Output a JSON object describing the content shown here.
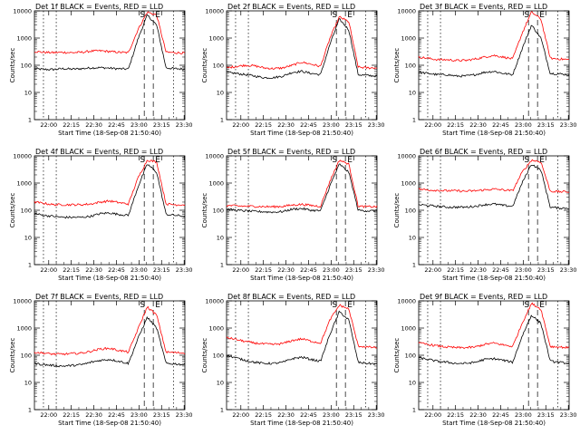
{
  "chart_data": [
    {
      "type": "line",
      "title": "Det 1f BLACK = Events, RED = LLD",
      "xlabel": "Start Time (18-Sep-08 21:50:40)",
      "ylabel": "Counts/sec",
      "yscale": "log",
      "ylim": [
        1,
        10000
      ],
      "xlim": [
        0,
        6000
      ],
      "x_ticks": [
        "22:00",
        "22:15",
        "22:30",
        "22:45",
        "23:00",
        "23:15",
        "23:30"
      ],
      "y_ticks": [
        "1",
        "10",
        "100",
        "1000",
        "10000"
      ],
      "markers": [
        "S",
        "E"
      ],
      "series": [
        {
          "name": "Events",
          "color": "#000000",
          "values": [
            75,
            70,
            70,
            75,
            72,
            75,
            80,
            82,
            78,
            74,
            72,
            900,
            7000,
            3000,
            80,
            75,
            72
          ]
        },
        {
          "name": "LLD",
          "color": "#ff0000",
          "values": [
            320,
            300,
            290,
            300,
            290,
            300,
            330,
            340,
            320,
            300,
            290,
            2000,
            9000,
            7000,
            300,
            290,
            280
          ]
        }
      ]
    },
    {
      "type": "line",
      "title": "Det 2f BLACK = Events, RED = LLD",
      "xlabel": "Start Time (18-Sep-08 21:50:40)",
      "ylabel": "Counts/sec",
      "yscale": "log",
      "ylim": [
        1,
        10000
      ],
      "xlim": [
        0,
        6000
      ],
      "x_ticks": [
        "22:00",
        "22:15",
        "22:30",
        "22:45",
        "23:00",
        "23:15",
        "23:30"
      ],
      "y_ticks": [
        "1",
        "10",
        "100",
        "1000",
        "10000"
      ],
      "markers": [
        "S",
        "E"
      ],
      "series": [
        {
          "name": "Events",
          "color": "#000000",
          "values": [
            55,
            50,
            45,
            40,
            35,
            35,
            40,
            55,
            60,
            50,
            45,
            600,
            5000,
            2000,
            45,
            42,
            40
          ]
        },
        {
          "name": "LLD",
          "color": "#ff0000",
          "values": [
            80,
            90,
            100,
            95,
            80,
            75,
            80,
            100,
            130,
            110,
            90,
            1000,
            6000,
            4000,
            85,
            80,
            80
          ]
        }
      ]
    },
    {
      "type": "line",
      "title": "Det 3f BLACK = Events, RED = LLD",
      "xlabel": "Start Time (18-Sep-08 21:50:40)",
      "ylabel": "Counts/sec",
      "yscale": "log",
      "ylim": [
        1,
        10000
      ],
      "xlim": [
        0,
        6000
      ],
      "x_ticks": [
        "22:00",
        "22:15",
        "22:30",
        "22:45",
        "23:00",
        "23:15",
        "23:30"
      ],
      "y_ticks": [
        "1",
        "10",
        "100",
        "1000",
        "10000"
      ],
      "markers": [
        "S",
        "E"
      ],
      "series": [
        {
          "name": "Events",
          "color": "#000000",
          "values": [
            55,
            50,
            45,
            45,
            40,
            40,
            45,
            55,
            60,
            50,
            45,
            400,
            3000,
            1000,
            50,
            48,
            45
          ]
        },
        {
          "name": "LLD",
          "color": "#ff0000",
          "values": [
            200,
            180,
            160,
            160,
            150,
            150,
            170,
            200,
            230,
            200,
            170,
            1500,
            9000,
            5000,
            180,
            170,
            160
          ]
        }
      ]
    },
    {
      "type": "line",
      "title": "Det 4f BLACK = Events, RED = LLD",
      "xlabel": "Start Time (18-Sep-08 21:50:40)",
      "ylabel": "Counts/sec",
      "yscale": "log",
      "ylim": [
        1,
        10000
      ],
      "xlim": [
        0,
        6000
      ],
      "x_ticks": [
        "22:00",
        "22:15",
        "22:30",
        "22:45",
        "23:00",
        "23:15",
        "23:30"
      ],
      "y_ticks": [
        "1",
        "10",
        "100",
        "1000",
        "10000"
      ],
      "markers": [
        "S",
        "E"
      ],
      "series": [
        {
          "name": "Events",
          "color": "#000000",
          "values": [
            75,
            65,
            60,
            55,
            55,
            55,
            60,
            75,
            80,
            70,
            65,
            700,
            5000,
            2500,
            70,
            65,
            60
          ]
        },
        {
          "name": "LLD",
          "color": "#ff0000",
          "values": [
            200,
            180,
            160,
            160,
            160,
            160,
            170,
            200,
            220,
            190,
            170,
            1500,
            7000,
            6000,
            170,
            160,
            160
          ]
        }
      ]
    },
    {
      "type": "line",
      "title": "Det 5f BLACK = Events, RED = LLD",
      "xlabel": "Start Time (18-Sep-08 21:50:40)",
      "ylabel": "Counts/sec",
      "yscale": "log",
      "ylim": [
        1,
        10000
      ],
      "xlim": [
        0,
        6000
      ],
      "x_ticks": [
        "22:00",
        "22:15",
        "22:30",
        "22:45",
        "23:00",
        "23:15",
        "23:30"
      ],
      "y_ticks": [
        "1",
        "10",
        "100",
        "1000",
        "10000"
      ],
      "markers": [
        "S",
        "E"
      ],
      "series": [
        {
          "name": "Events",
          "color": "#000000",
          "values": [
            110,
            100,
            95,
            90,
            88,
            85,
            90,
            110,
            115,
            100,
            95,
            800,
            5000,
            2500,
            100,
            95,
            95
          ]
        },
        {
          "name": "LLD",
          "color": "#ff0000",
          "values": [
            150,
            145,
            140,
            140,
            135,
            135,
            140,
            155,
            165,
            150,
            140,
            1200,
            7000,
            5000,
            140,
            135,
            135
          ]
        }
      ]
    },
    {
      "type": "line",
      "title": "Det 6f BLACK = Events, RED = LLD",
      "xlabel": "Start Time (18-Sep-08 21:50:40)",
      "ylabel": "Counts/sec",
      "yscale": "log",
      "ylim": [
        1,
        10000
      ],
      "xlim": [
        0,
        6000
      ],
      "x_ticks": [
        "22:00",
        "22:15",
        "22:30",
        "22:45",
        "23:00",
        "23:15",
        "23:30"
      ],
      "y_ticks": [
        "1",
        "10",
        "100",
        "1000",
        "10000"
      ],
      "markers": [
        "S",
        "E"
      ],
      "series": [
        {
          "name": "Events",
          "color": "#000000",
          "values": [
            160,
            150,
            140,
            130,
            130,
            130,
            140,
            160,
            170,
            150,
            140,
            1000,
            5000,
            3000,
            130,
            120,
            120
          ]
        },
        {
          "name": "LLD",
          "color": "#ff0000",
          "values": [
            600,
            560,
            540,
            520,
            520,
            500,
            520,
            560,
            600,
            560,
            520,
            2500,
            7000,
            6000,
            500,
            480,
            480
          ]
        }
      ]
    },
    {
      "type": "line",
      "title": "Det 7f BLACK = Events, RED = LLD",
      "xlabel": "Start Time (18-Sep-08 21:50:40)",
      "ylabel": "Counts/sec",
      "yscale": "log",
      "ylim": [
        1,
        10000
      ],
      "xlim": [
        0,
        6000
      ],
      "x_ticks": [
        "22:00",
        "22:15",
        "22:30",
        "22:45",
        "23:00",
        "23:15",
        "23:30"
      ],
      "y_ticks": [
        "1",
        "10",
        "100",
        "1000",
        "10000"
      ],
      "markers": [
        "S",
        "E"
      ],
      "series": [
        {
          "name": "Events",
          "color": "#000000",
          "values": [
            50,
            45,
            42,
            40,
            42,
            45,
            55,
            65,
            70,
            60,
            50,
            400,
            2500,
            1000,
            50,
            48,
            45
          ]
        },
        {
          "name": "LLD",
          "color": "#ff0000",
          "values": [
            130,
            120,
            110,
            110,
            115,
            120,
            140,
            170,
            180,
            150,
            130,
            900,
            6000,
            3000,
            130,
            125,
            120
          ]
        }
      ]
    },
    {
      "type": "line",
      "title": "Det 8f BLACK = Events, RED = LLD",
      "xlabel": "Start Time (18-Sep-08 21:50:40)",
      "ylabel": "Counts/sec",
      "yscale": "log",
      "ylim": [
        1,
        10000
      ],
      "xlim": [
        0,
        6000
      ],
      "x_ticks": [
        "22:00",
        "22:15",
        "22:30",
        "22:45",
        "23:00",
        "23:15",
        "23:30"
      ],
      "y_ticks": [
        "1",
        "10",
        "100",
        "1000",
        "10000"
      ],
      "markers": [
        "S",
        "E"
      ],
      "series": [
        {
          "name": "Events",
          "color": "#000000",
          "values": [
            100,
            80,
            65,
            55,
            50,
            50,
            55,
            75,
            85,
            70,
            60,
            600,
            4000,
            2000,
            55,
            50,
            48
          ]
        },
        {
          "name": "LLD",
          "color": "#ff0000",
          "values": [
            450,
            380,
            320,
            280,
            260,
            250,
            270,
            350,
            400,
            330,
            280,
            2000,
            7000,
            5000,
            220,
            200,
            190
          ]
        }
      ]
    },
    {
      "type": "line",
      "title": "Det 9f BLACK = Events, RED = LLD",
      "xlabel": "Start Time (18-Sep-08 21:50:40)",
      "ylabel": "Counts/sec",
      "yscale": "log",
      "ylim": [
        1,
        10000
      ],
      "xlim": [
        0,
        6000
      ],
      "x_ticks": [
        "22:00",
        "22:15",
        "22:30",
        "22:45",
        "23:00",
        "23:15",
        "23:30"
      ],
      "y_ticks": [
        "1",
        "10",
        "100",
        "1000",
        "10000"
      ],
      "markers": [
        "S",
        "E"
      ],
      "series": [
        {
          "name": "Events",
          "color": "#000000",
          "values": [
            80,
            70,
            60,
            55,
            50,
            50,
            55,
            70,
            75,
            65,
            55,
            500,
            3000,
            1500,
            60,
            55,
            50
          ]
        },
        {
          "name": "LLD",
          "color": "#ff0000",
          "values": [
            280,
            250,
            220,
            200,
            190,
            190,
            200,
            250,
            280,
            240,
            210,
            1500,
            8000,
            5000,
            210,
            200,
            190
          ]
        }
      ]
    }
  ]
}
